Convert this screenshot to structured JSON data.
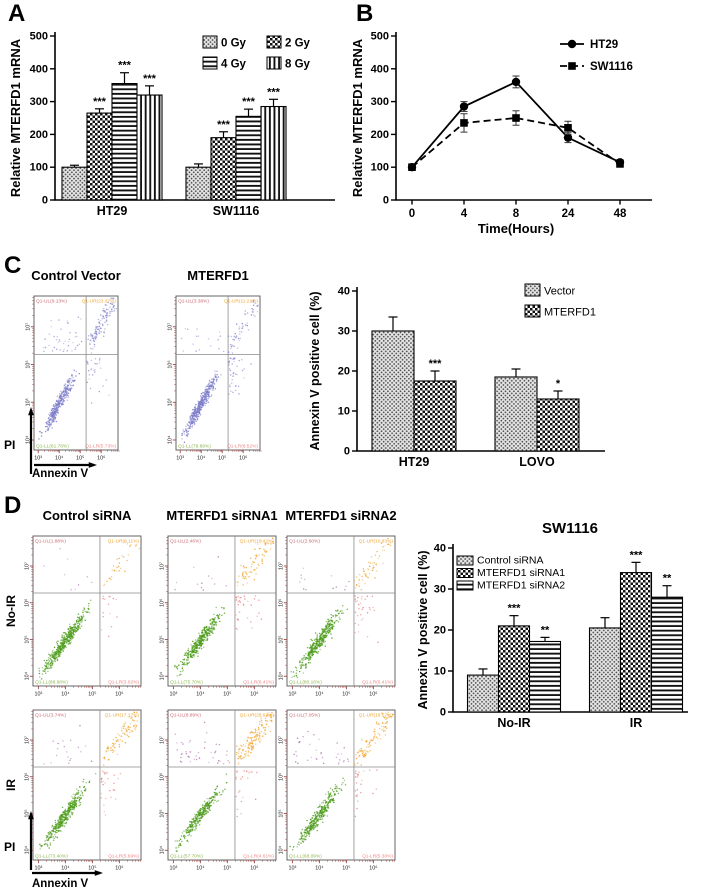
{
  "panel_labels": {
    "a": "A",
    "b": "B",
    "c": "C",
    "d": "D"
  },
  "chart_data": [
    {
      "id": "A",
      "type": "bar",
      "ylabel": "Relative MTERFD1 mRNA",
      "ylim": [
        0,
        500
      ],
      "yticks": [
        0,
        100,
        200,
        300,
        400,
        500
      ],
      "categories": [
        "HT29",
        "SW1116"
      ],
      "legend_position": "top-right",
      "series": [
        {
          "name": "0 Gy",
          "pattern": "stipple",
          "values": [
            100,
            100
          ],
          "errors": [
            6,
            10
          ],
          "sig": [
            "",
            ""
          ]
        },
        {
          "name": "2 Gy",
          "pattern": "checker",
          "values": [
            265,
            190
          ],
          "errors": [
            13,
            18
          ],
          "sig": [
            "***",
            "***"
          ]
        },
        {
          "name": "4 Gy",
          "pattern": "hlines",
          "values": [
            355,
            255
          ],
          "errors": [
            33,
            22
          ],
          "sig": [
            "***",
            "***"
          ]
        },
        {
          "name": "8 Gy",
          "pattern": "vlines",
          "values": [
            320,
            285
          ],
          "errors": [
            28,
            22
          ],
          "sig": [
            "***",
            "***"
          ]
        }
      ]
    },
    {
      "id": "B",
      "type": "line",
      "xlabel": "Time(Hours)",
      "ylabel": "Relative MTERFD1 mRNA",
      "ylim": [
        0,
        500
      ],
      "yticks": [
        0,
        100,
        200,
        300,
        400,
        500
      ],
      "x": [
        "0",
        "4",
        "8",
        "24",
        "48"
      ],
      "legend_position": "top-right",
      "series": [
        {
          "name": "HT29",
          "marker": "circle",
          "line_style": "solid",
          "values": [
            100,
            285,
            360,
            190,
            115
          ],
          "errors": [
            5,
            15,
            18,
            15,
            8
          ]
        },
        {
          "name": "SW1116",
          "marker": "square",
          "line_style": "dashed",
          "values": [
            100,
            235,
            250,
            220,
            110
          ],
          "errors": [
            5,
            28,
            22,
            20,
            8
          ]
        }
      ]
    },
    {
      "id": "C_flow",
      "type": "scatter",
      "subtype": "flow-cytometry",
      "xlabel": "Annexin V",
      "ylabel": "PI",
      "xticks": [
        "10³",
        "10⁴",
        "10⁵",
        "10⁶"
      ],
      "yticks": [
        "10⁴",
        "10⁵",
        "10⁶",
        "10⁷"
      ],
      "plots": [
        {
          "title": "Control Vector",
          "quadrants": {
            "ul": "Q1-UL(9.13%)",
            "ur": "Q1-UR(23.37%)",
            "ll": "Q1-LL(61.78%)",
            "lr": "Q1-LR(5.73%)"
          }
        },
        {
          "title": "MTERFD1",
          "quadrants": {
            "ul": "Q1-UL(3.38%)",
            "ur": "Q1-UR(11.21%)",
            "ll": "Q1-LL(78.89%)",
            "lr": "Q1-LR(8.52%)"
          }
        }
      ],
      "style": {
        "quadrant_label_colors": {
          "ul": "#c96a74",
          "ur": "#f0a73a",
          "ll": "#8db54d",
          "lr": "#ee8585"
        },
        "dot_palette": {
          "ll": "#7d7dca",
          "ur": "#8f8fd2",
          "ul": "#988fd2",
          "lr": "#988fd2"
        },
        "tick_color": "#a34646",
        "frame_color": "#555555",
        "cross_color": "#8a8a8a"
      }
    },
    {
      "id": "C_bar",
      "type": "bar",
      "ylabel": "Annexin V positive cell (%)",
      "ylim": [
        0,
        40
      ],
      "yticks": [
        0,
        10,
        20,
        30,
        40
      ],
      "categories": [
        "HT29",
        "LOVO"
      ],
      "legend_position": "top-right",
      "series": [
        {
          "name": "Vector",
          "pattern": "stipple",
          "values": [
            30,
            18.5
          ],
          "errors": [
            3.5,
            2
          ],
          "sig": [
            "",
            ""
          ]
        },
        {
          "name": "MTERFD1",
          "pattern": "checker",
          "values": [
            17.5,
            13
          ],
          "errors": [
            2.5,
            2
          ],
          "sig": [
            "***",
            "*"
          ]
        }
      ]
    },
    {
      "id": "D_flow",
      "type": "scatter",
      "subtype": "flow-cytometry",
      "xlabel": "Annexin V",
      "ylabel": "PI",
      "xticks": [
        "10³",
        "10⁴",
        "10⁵",
        "10⁶"
      ],
      "yticks": [
        "10⁴",
        "10⁵",
        "10⁶",
        "10⁷"
      ],
      "col_titles": [
        "Control siRNA",
        "MTERFD1 siRNA1",
        "MTERFD1 siRNA2"
      ],
      "row_labels": [
        "No-IR",
        "IR"
      ],
      "plots": [
        {
          "quadrants": {
            "ul": "Q1-UL(1.88%)",
            "ur": "Q1-UR(6.11%)",
            "ll": "Q1-LL(88.98%)",
            "lr": "Q1-LR(3.02%)"
          }
        },
        {
          "quadrants": {
            "ul": "Q1-UL(2.46%)",
            "ur": "Q1-UR(15.42%)",
            "ll": "Q1-LL(75.70%)",
            "lr": "Q1-LR(6.41%)"
          }
        },
        {
          "quadrants": {
            "ul": "Q1-UL(2.60%)",
            "ur": "Q1-UR(10.83%)",
            "ll": "Q1-LL(80.16%)",
            "lr": "Q1-LR(6.41%)"
          }
        },
        {
          "quadrants": {
            "ul": "Q1-UL(3.74%)",
            "ur": "Q1-UR(17.17%)",
            "ll": "Q1-LL(73.40%)",
            "lr": "Q1-LR(5.69%)"
          }
        },
        {
          "quadrants": {
            "ul": "Q1-UL(8.89%)",
            "ur": "Q1-UR(28.91%)",
            "ll": "Q1-LL(57.70%)",
            "lr": "Q1-LR(4.61%)"
          }
        },
        {
          "quadrants": {
            "ul": "Q1-UL(7.05%)",
            "ur": "Q1-UR(19.57%)",
            "ll": "Q1-LL(68.09%)",
            "lr": "Q1-LR(5.30%)"
          }
        }
      ],
      "style": {
        "quadrant_label_colors": {
          "ul": "#c96a74",
          "ur": "#f0a73a",
          "ll": "#8db54d",
          "lr": "#ee8585"
        },
        "dot_palette": {
          "ll": "#4f9d1e",
          "ur": "#f0a838",
          "ul": "#a768a7",
          "lr": "#e88282"
        },
        "tick_color": "#a34646",
        "frame_color": "#555555",
        "cross_color": "#8a8a8a"
      }
    },
    {
      "id": "D_bar",
      "type": "bar",
      "title": "SW1116",
      "ylabel": "Annexin V positive cell (%)",
      "ylim": [
        0,
        40
      ],
      "yticks": [
        0,
        10,
        20,
        30,
        40
      ],
      "categories": [
        "No-IR",
        "IR"
      ],
      "legend_position": "top-left",
      "series": [
        {
          "name": "Control siRNA",
          "pattern": "stipple",
          "values": [
            9,
            20.5
          ],
          "errors": [
            1.5,
            2.5
          ],
          "sig": [
            "",
            ""
          ]
        },
        {
          "name": "MTERFD1 siRNA1",
          "pattern": "checker",
          "values": [
            21,
            34
          ],
          "errors": [
            2.5,
            2.5
          ],
          "sig": [
            "***",
            "***"
          ]
        },
        {
          "name": "MTERFD1 siRNA2",
          "pattern": "hlines",
          "values": [
            17.2,
            28
          ],
          "errors": [
            1,
            2.8
          ],
          "sig": [
            "**",
            "**"
          ]
        }
      ]
    }
  ]
}
